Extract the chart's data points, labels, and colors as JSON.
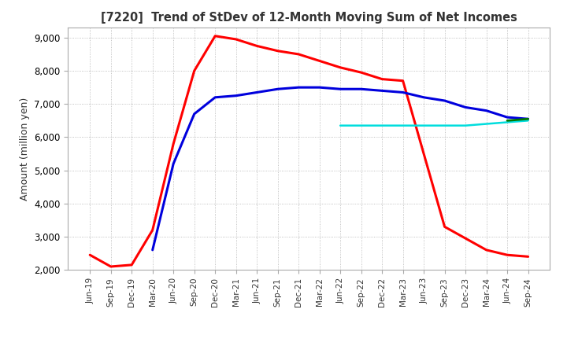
{
  "title": "[7220]  Trend of StDev of 12-Month Moving Sum of Net Incomes",
  "ylabel": "Amount (million yen)",
  "ylim": [
    2000,
    9300
  ],
  "yticks": [
    2000,
    3000,
    4000,
    5000,
    6000,
    7000,
    8000,
    9000
  ],
  "background_color": "#ffffff",
  "grid_color": "#b0b0b0",
  "series": {
    "3years": {
      "color": "#ff0000",
      "dates": [
        "Jun-19",
        "Sep-19",
        "Dec-19",
        "Mar-20",
        "Jun-20",
        "Sep-20",
        "Dec-20",
        "Mar-21",
        "Jun-21",
        "Sep-21",
        "Dec-21",
        "Mar-22",
        "Jun-22",
        "Sep-22",
        "Dec-22",
        "Mar-23",
        "Jun-23",
        "Sep-23",
        "Dec-23",
        "Mar-24",
        "Jun-24",
        "Sep-24"
      ],
      "values": [
        2450,
        2100,
        2150,
        3200,
        5800,
        8000,
        9050,
        8950,
        8750,
        8600,
        8500,
        8300,
        8100,
        7950,
        7750,
        7700,
        5500,
        3300,
        2950,
        2600,
        2450,
        2400
      ]
    },
    "5years": {
      "color": "#0000dd",
      "dates": [
        "Jun-19",
        "Sep-19",
        "Dec-19",
        "Mar-20",
        "Jun-20",
        "Sep-20",
        "Dec-20",
        "Mar-21",
        "Jun-21",
        "Sep-21",
        "Dec-21",
        "Mar-22",
        "Jun-22",
        "Sep-22",
        "Dec-22",
        "Mar-23",
        "Jun-23",
        "Sep-23",
        "Dec-23",
        "Mar-24",
        "Jun-24",
        "Sep-24"
      ],
      "values": [
        null,
        null,
        null,
        2600,
        5200,
        6700,
        7200,
        7250,
        7350,
        7450,
        7500,
        7500,
        7450,
        7450,
        7400,
        7350,
        7200,
        7100,
        6900,
        6800,
        6600,
        6550
      ]
    },
    "7years": {
      "color": "#00dddd",
      "dates": [
        "Jun-19",
        "Sep-19",
        "Dec-19",
        "Mar-20",
        "Jun-20",
        "Sep-20",
        "Dec-20",
        "Mar-21",
        "Jun-21",
        "Sep-21",
        "Dec-21",
        "Mar-22",
        "Jun-22",
        "Sep-22",
        "Dec-22",
        "Mar-23",
        "Jun-23",
        "Sep-23",
        "Dec-23",
        "Mar-24",
        "Jun-24",
        "Sep-24"
      ],
      "values": [
        null,
        null,
        null,
        null,
        null,
        null,
        null,
        null,
        null,
        null,
        null,
        null,
        6350,
        6350,
        6350,
        6350,
        6350,
        6350,
        6350,
        6400,
        6450,
        6500
      ]
    },
    "10years": {
      "color": "#007700",
      "dates": [
        "Jun-19",
        "Sep-19",
        "Dec-19",
        "Mar-20",
        "Jun-20",
        "Sep-20",
        "Dec-20",
        "Mar-21",
        "Jun-21",
        "Sep-21",
        "Dec-21",
        "Mar-22",
        "Jun-22",
        "Sep-22",
        "Dec-22",
        "Mar-23",
        "Jun-23",
        "Sep-23",
        "Dec-23",
        "Mar-24",
        "Jun-24",
        "Sep-24"
      ],
      "values": [
        null,
        null,
        null,
        null,
        null,
        null,
        null,
        null,
        null,
        null,
        null,
        null,
        null,
        null,
        null,
        null,
        null,
        null,
        null,
        null,
        6500,
        6550
      ]
    }
  }
}
